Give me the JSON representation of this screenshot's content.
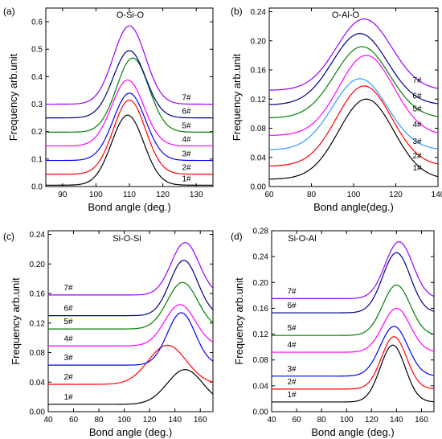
{
  "colors": {
    "1#": "#000000",
    "2#": "#ff0000",
    "3#": "#0000ff",
    "4#": "#ff00ff",
    "5#": "#008000",
    "6#": "#000080",
    "7#": "#9900ff",
    "3#_b": "#3399ff"
  },
  "chart_data": [
    {
      "type": "line",
      "panel": "(a)",
      "title": "O-Si-O",
      "xlabel": "Bond angle (deg.)",
      "ylabel": "Frequency arb.unit",
      "xlim": [
        85,
        135
      ],
      "ylim": [
        0,
        0.65
      ],
      "xticks": [
        90,
        100,
        110,
        120,
        130
      ],
      "yticks": [
        0.0,
        0.1,
        0.2,
        0.3,
        0.4,
        0.5,
        0.6
      ],
      "ytick_labels": [
        "0.0",
        "0.1",
        "0.2",
        "0.3",
        "0.4",
        "0.5",
        "0.6"
      ],
      "series": [
        {
          "name": "1#",
          "base": 0.005,
          "amp": 0.255,
          "center": 109.5,
          "sigma": 4.8
        },
        {
          "name": "2#",
          "base": 0.045,
          "amp": 0.27,
          "center": 110,
          "sigma": 4.8
        },
        {
          "name": "3#",
          "base": 0.095,
          "amp": 0.245,
          "center": 110,
          "sigma": 4.8
        },
        {
          "name": "4#",
          "base": 0.148,
          "amp": 0.24,
          "center": 109.5,
          "sigma": 4.8
        },
        {
          "name": "5#",
          "base": 0.198,
          "amp": 0.27,
          "center": 111,
          "sigma": 4.8
        },
        {
          "name": "6#",
          "base": 0.25,
          "amp": 0.245,
          "center": 110,
          "sigma": 4.8
        },
        {
          "name": "7#",
          "base": 0.3,
          "amp": 0.285,
          "center": 110,
          "sigma": 4.8
        }
      ]
    },
    {
      "type": "line",
      "panel": "(b)",
      "title": "O-Al-O",
      "xlabel": "Bond angle(deg.)",
      "ylabel": "Frequency arb.unit",
      "xlim": [
        60,
        140
      ],
      "ylim": [
        0,
        0.245
      ],
      "xticks": [
        60,
        80,
        100,
        120,
        140
      ],
      "yticks": [
        0.0,
        0.04,
        0.08,
        0.12,
        0.16,
        0.2,
        0.24
      ],
      "ytick_labels": [
        "0.00",
        "0.04",
        "0.08",
        "0.12",
        "0.16",
        "0.20",
        "0.24"
      ],
      "series": [
        {
          "name": "1#",
          "base": 0.01,
          "amp": 0.11,
          "center": 106,
          "sigma": 13
        },
        {
          "name": "2#",
          "base": 0.028,
          "amp": 0.11,
          "center": 105,
          "sigma": 13
        },
        {
          "name": "3#",
          "base": 0.05,
          "amp": 0.098,
          "center": 103,
          "sigma": 13,
          "color": "#3399ff"
        },
        {
          "name": "4#",
          "base": 0.07,
          "amp": 0.11,
          "center": 106,
          "sigma": 13
        },
        {
          "name": "5#",
          "base": 0.094,
          "amp": 0.098,
          "center": 104,
          "sigma": 13
        },
        {
          "name": "6#",
          "base": 0.112,
          "amp": 0.098,
          "center": 103,
          "sigma": 13
        },
        {
          "name": "7#",
          "base": 0.132,
          "amp": 0.098,
          "center": 105,
          "sigma": 13
        }
      ]
    },
    {
      "type": "line",
      "panel": "(c)",
      "title": "Si-O-Si",
      "xlabel": "Bond angle (deg.)",
      "ylabel": "Frequency arb.unit",
      "xlim": [
        40,
        170
      ],
      "ylim": [
        0,
        0.245
      ],
      "xticks": [
        40,
        60,
        80,
        100,
        120,
        140,
        160
      ],
      "yticks": [
        0.0,
        0.04,
        0.08,
        0.12,
        0.16,
        0.2,
        0.24
      ],
      "ytick_labels": [
        "0.00",
        "0.04",
        "0.08",
        "0.12",
        "0.16",
        "0.20",
        "0.24"
      ],
      "series": [
        {
          "name": "1#",
          "base": 0.01,
          "amp": 0.047,
          "center": 148,
          "sigma": 14
        },
        {
          "name": "2#",
          "base": 0.037,
          "amp": 0.053,
          "center": 134,
          "sigma": 15
        },
        {
          "name": "3#",
          "base": 0.063,
          "amp": 0.071,
          "center": 145,
          "sigma": 11
        },
        {
          "name": "4#",
          "base": 0.089,
          "amp": 0.056,
          "center": 144,
          "sigma": 12
        },
        {
          "name": "5#",
          "base": 0.112,
          "amp": 0.063,
          "center": 146,
          "sigma": 12
        },
        {
          "name": "6#",
          "base": 0.13,
          "amp": 0.075,
          "center": 147,
          "sigma": 11
        },
        {
          "name": "7#",
          "base": 0.158,
          "amp": 0.071,
          "center": 148,
          "sigma": 11
        }
      ]
    },
    {
      "type": "line",
      "panel": "(d)",
      "title": "Si-O-Al",
      "xlabel": "Bond angle (deg.)",
      "ylabel": "Frequency arb.unit",
      "xlim": [
        40,
        170
      ],
      "ylim": [
        0,
        0.28
      ],
      "xticks": [
        40,
        60,
        80,
        100,
        120,
        140,
        160
      ],
      "yticks": [
        0.0,
        0.04,
        0.08,
        0.12,
        0.16,
        0.2,
        0.24,
        0.28
      ],
      "ytick_labels": [
        "0.00",
        "0.04",
        "0.08",
        "0.12",
        "0.16",
        "0.20",
        "0.24",
        "0.28"
      ],
      "series": [
        {
          "name": "1#",
          "base": 0.015,
          "amp": 0.088,
          "center": 137,
          "sigma": 10
        },
        {
          "name": "2#",
          "base": 0.035,
          "amp": 0.081,
          "center": 138,
          "sigma": 10
        },
        {
          "name": "3#",
          "base": 0.055,
          "amp": 0.077,
          "center": 138,
          "sigma": 11
        },
        {
          "name": "4#",
          "base": 0.092,
          "amp": 0.068,
          "center": 140,
          "sigma": 11
        },
        {
          "name": "5#",
          "base": 0.118,
          "amp": 0.078,
          "center": 140,
          "sigma": 11
        },
        {
          "name": "6#",
          "base": 0.153,
          "amp": 0.093,
          "center": 140,
          "sigma": 11
        },
        {
          "name": "7#",
          "base": 0.175,
          "amp": 0.088,
          "center": 142,
          "sigma": 11
        }
      ]
    }
  ]
}
